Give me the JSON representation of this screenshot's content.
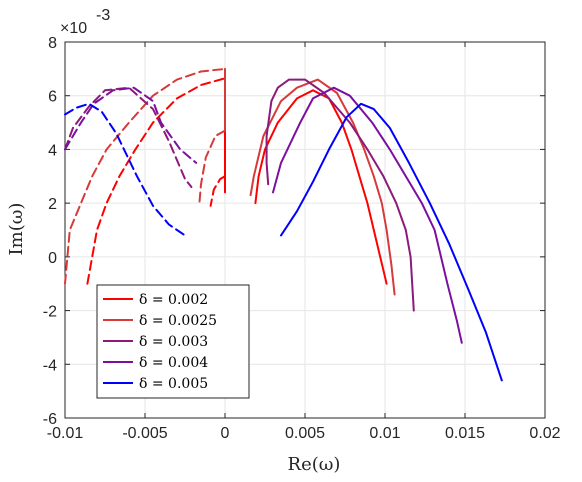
{
  "chart_data": {
    "type": "line",
    "title": "",
    "xlabel": "Re(ω)",
    "ylabel": "Im(ω)",
    "xlim": [
      -0.01,
      0.02
    ],
    "ylim": [
      -6,
      8
    ],
    "y_multiplier": "×10",
    "y_multiplier_exp": "-3",
    "grid": true,
    "legend_position": "lower-left",
    "x_ticks": [
      {
        "value": -0.01,
        "label": "-0.01"
      },
      {
        "value": -0.005,
        "label": "-0.005"
      },
      {
        "value": 0,
        "label": "0"
      },
      {
        "value": 0.005,
        "label": "0.005"
      },
      {
        "value": 0.01,
        "label": "0.01"
      },
      {
        "value": 0.015,
        "label": "0.015"
      },
      {
        "value": 0.02,
        "label": "0.02"
      }
    ],
    "y_ticks": [
      {
        "value": -6,
        "label": "-6"
      },
      {
        "value": -4,
        "label": "-4"
      },
      {
        "value": -2,
        "label": "-2"
      },
      {
        "value": 0,
        "label": "0"
      },
      {
        "value": 2,
        "label": "2"
      },
      {
        "value": 4,
        "label": "4"
      },
      {
        "value": 6,
        "label": "6"
      },
      {
        "value": 8,
        "label": "8"
      }
    ],
    "series": [
      {
        "name": "δ = 0.002",
        "color": "#ff0000",
        "solid": [
          [
            0.0019,
            2.0
          ],
          [
            0.0021,
            3.0
          ],
          [
            0.0025,
            4.0
          ],
          [
            0.0033,
            5.0
          ],
          [
            0.0045,
            5.9
          ],
          [
            0.0055,
            6.2
          ],
          [
            0.0065,
            5.9
          ],
          [
            0.0073,
            5.0
          ],
          [
            0.0079,
            4.0
          ],
          [
            0.0084,
            3.0
          ],
          [
            0.0089,
            2.0
          ],
          [
            0.0093,
            1.0
          ],
          [
            0.0097,
            0.0
          ],
          [
            0.0101,
            -1.0
          ]
        ],
        "dashed": [
          [
            -0.0086,
            -1.0
          ],
          [
            -0.008,
            1.0
          ],
          [
            -0.0074,
            2.0
          ],
          [
            -0.0066,
            3.0
          ],
          [
            -0.0056,
            4.0
          ],
          [
            -0.0045,
            5.0
          ],
          [
            -0.003,
            5.9
          ],
          [
            -0.0015,
            6.4
          ],
          [
            0.0,
            6.65
          ]
        ],
        "branch_solid": [
          [
            0.0,
            6.65
          ],
          [
            0.0,
            2.4
          ]
        ],
        "branch_dashed": [
          [
            0.0,
            3.0
          ],
          [
            -0.0003,
            2.9
          ],
          [
            -0.0007,
            2.5
          ],
          [
            -0.0009,
            1.9
          ]
        ]
      },
      {
        "name": "δ = 0.0025",
        "color": "#d63a3a",
        "solid": [
          [
            0.0016,
            2.3
          ],
          [
            0.0018,
            3.0
          ],
          [
            0.0024,
            4.5
          ],
          [
            0.0035,
            5.8
          ],
          [
            0.0045,
            6.3
          ],
          [
            0.0058,
            6.6
          ],
          [
            0.007,
            6.1
          ],
          [
            0.008,
            5.0
          ],
          [
            0.0087,
            4.0
          ],
          [
            0.0093,
            3.0
          ],
          [
            0.0098,
            2.0
          ],
          [
            0.0101,
            1.0
          ],
          [
            0.0104,
            -0.3
          ],
          [
            0.0106,
            -1.4
          ]
        ],
        "dashed": [
          [
            -0.01,
            -1.0
          ],
          [
            -0.0097,
            1.0
          ],
          [
            -0.009,
            2.0
          ],
          [
            -0.0083,
            3.0
          ],
          [
            -0.0074,
            4.0
          ],
          [
            -0.006,
            5.0
          ],
          [
            -0.0045,
            6.0
          ],
          [
            -0.003,
            6.6
          ],
          [
            -0.0015,
            6.9
          ],
          [
            0.0,
            7.0
          ]
        ],
        "branch_solid": [
          [
            0.0,
            7.0
          ],
          [
            0.0,
            4.7
          ]
        ],
        "branch_dashed": [
          [
            0.0,
            4.7
          ],
          [
            -0.0006,
            4.5
          ],
          [
            -0.0012,
            3.7
          ],
          [
            -0.0015,
            2.7
          ],
          [
            -0.0016,
            2.0
          ]
        ]
      },
      {
        "name": "δ = 0.003",
        "color": "#8b1a7a",
        "solid": [
          [
            0.0027,
            2.7
          ],
          [
            0.0026,
            3.5
          ],
          [
            0.0026,
            4.5
          ],
          [
            0.0029,
            5.8
          ],
          [
            0.0033,
            6.3
          ],
          [
            0.004,
            6.6
          ],
          [
            0.005,
            6.6
          ],
          [
            0.0062,
            6.1
          ],
          [
            0.0078,
            5.0
          ],
          [
            0.0089,
            4.0
          ],
          [
            0.0099,
            3.0
          ],
          [
            0.0107,
            2.0
          ],
          [
            0.0113,
            1.0
          ],
          [
            0.0116,
            0.0
          ],
          [
            0.0118,
            -2.0
          ]
        ],
        "dashed": [
          [
            -0.01,
            4.0
          ],
          [
            -0.0095,
            4.8
          ],
          [
            -0.0085,
            5.6
          ],
          [
            -0.0075,
            6.2
          ],
          [
            -0.006,
            6.3
          ],
          [
            -0.0045,
            5.5
          ],
          [
            -0.0035,
            4.3
          ],
          [
            -0.0025,
            2.9
          ],
          [
            -0.0021,
            2.6
          ]
        ]
      },
      {
        "name": "δ = 0.004",
        "color": "#7c0fa0",
        "solid": [
          [
            0.003,
            2.4
          ],
          [
            0.0035,
            3.5
          ],
          [
            0.0047,
            5.0
          ],
          [
            0.0055,
            5.9
          ],
          [
            0.0068,
            6.3
          ],
          [
            0.0078,
            6.0
          ],
          [
            0.0092,
            5.0
          ],
          [
            0.0103,
            4.0
          ],
          [
            0.0113,
            3.0
          ],
          [
            0.0123,
            2.0
          ],
          [
            0.0131,
            1.0
          ],
          [
            0.0139,
            -1.0
          ],
          [
            0.0145,
            -2.4
          ],
          [
            0.0148,
            -3.2
          ]
        ],
        "dashed": [
          [
            -0.01,
            4.0
          ],
          [
            -0.009,
            5.0
          ],
          [
            -0.0082,
            5.7
          ],
          [
            -0.007,
            6.2
          ],
          [
            -0.0057,
            6.3
          ],
          [
            -0.0045,
            5.8
          ],
          [
            -0.004,
            5.0
          ],
          [
            -0.0028,
            4.0
          ],
          [
            -0.0018,
            3.5
          ]
        ]
      },
      {
        "name": "δ = 0.005",
        "color": "#0000ff",
        "solid": [
          [
            0.0035,
            0.8
          ],
          [
            0.0045,
            1.7
          ],
          [
            0.0055,
            2.8
          ],
          [
            0.0065,
            4.0
          ],
          [
            0.0076,
            5.2
          ],
          [
            0.0085,
            5.7
          ],
          [
            0.0093,
            5.5
          ],
          [
            0.0103,
            4.8
          ],
          [
            0.0115,
            3.5
          ],
          [
            0.0128,
            2.0
          ],
          [
            0.014,
            0.5
          ],
          [
            0.0152,
            -1.2
          ],
          [
            0.0163,
            -2.8
          ],
          [
            0.0173,
            -4.6
          ]
        ],
        "dashed": [
          [
            -0.01,
            5.3
          ],
          [
            -0.0093,
            5.55
          ],
          [
            -0.0085,
            5.7
          ],
          [
            -0.0077,
            5.4
          ],
          [
            -0.0068,
            4.6
          ],
          [
            -0.0055,
            3.0
          ],
          [
            -0.0045,
            1.9
          ],
          [
            -0.0035,
            1.2
          ],
          [
            -0.0025,
            0.8
          ]
        ]
      }
    ]
  }
}
